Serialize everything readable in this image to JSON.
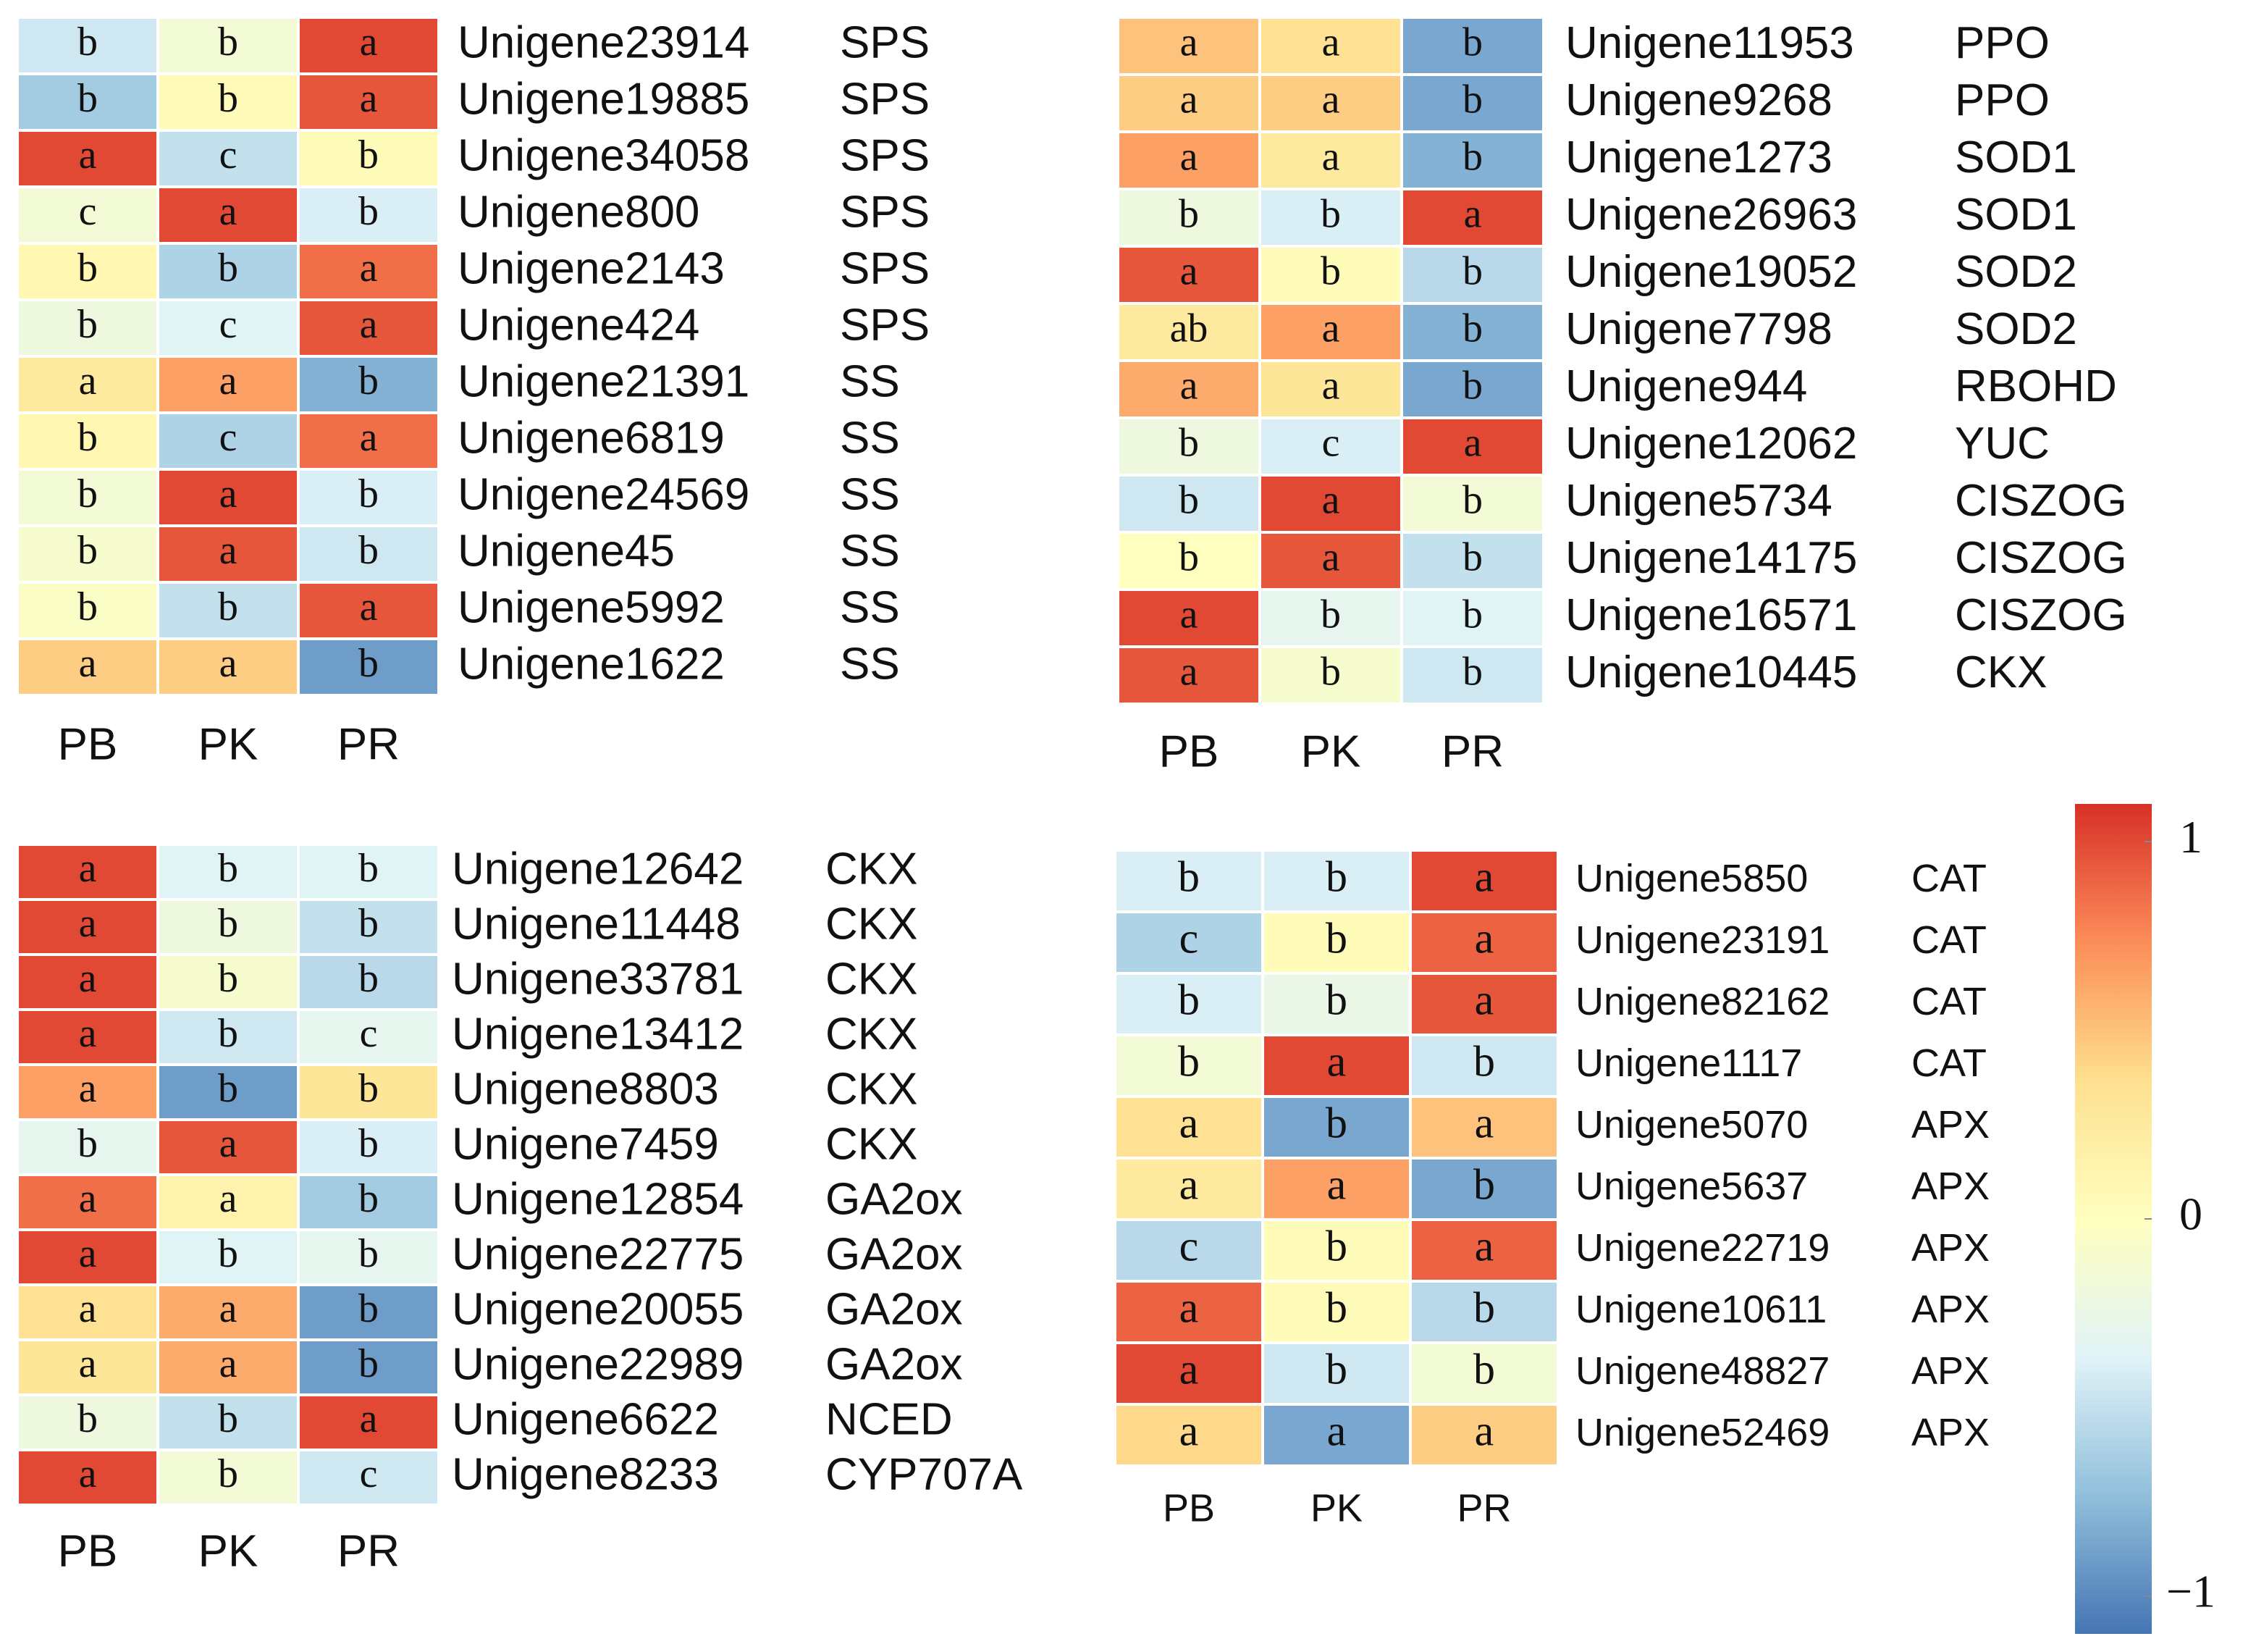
{
  "chart_data": [
    {
      "type": "heatmap",
      "columns": [
        "PB",
        "PK",
        "PR"
      ],
      "row_ids": [
        "Unigene23914",
        "Unigene19885",
        "Unigene34058",
        "Unigene800",
        "Unigene2143",
        "Unigene424",
        "Unigene21391",
        "Unigene6819",
        "Unigene24569",
        "Unigene45",
        "Unigene5992",
        "Unigene1622"
      ],
      "row_genes": [
        "SPS",
        "SPS",
        "SPS",
        "SPS",
        "SPS",
        "SPS",
        "SS",
        "SS",
        "SS",
        "SS",
        "SS",
        "SS"
      ],
      "values": [
        [
          -0.45,
          -0.15,
          1
        ],
        [
          -0.65,
          0.05,
          0.95
        ],
        [
          1,
          -0.5,
          0.05
        ],
        [
          -0.15,
          1,
          -0.4
        ],
        [
          0.1,
          -0.6,
          0.85
        ],
        [
          -0.2,
          -0.35,
          0.95
        ],
        [
          0.25,
          0.65,
          -0.8
        ],
        [
          0.1,
          -0.6,
          0.85
        ],
        [
          -0.15,
          1,
          -0.4
        ],
        [
          -0.1,
          0.95,
          -0.45
        ],
        [
          -0.05,
          -0.5,
          0.95
        ],
        [
          0.45,
          0.45,
          -0.9
        ]
      ],
      "letters": [
        [
          "b",
          "b",
          "a"
        ],
        [
          "b",
          "b",
          "a"
        ],
        [
          "a",
          "c",
          "b"
        ],
        [
          "c",
          "a",
          "b"
        ],
        [
          "b",
          "b",
          "a"
        ],
        [
          "b",
          "c",
          "a"
        ],
        [
          "a",
          "a",
          "b"
        ],
        [
          "b",
          "c",
          "a"
        ],
        [
          "b",
          "a",
          "b"
        ],
        [
          "b",
          "a",
          "b"
        ],
        [
          "b",
          "b",
          "a"
        ],
        [
          "a",
          "a",
          "b"
        ]
      ]
    },
    {
      "type": "heatmap",
      "columns": [
        "PB",
        "PK",
        "PR"
      ],
      "row_ids": [
        "Unigene11953",
        "Unigene9268",
        "Unigene1273",
        "Unigene26963",
        "Unigene19052",
        "Unigene7798",
        "Unigene944",
        "Unigene12062",
        "Unigene5734",
        "Unigene14175",
        "Unigene16571",
        "Unigene10445"
      ],
      "row_genes": [
        "PPO",
        "PPO",
        "SOD1",
        "SOD1",
        "SOD2",
        "SOD2",
        "RBOHD",
        "YUC",
        "CISZOG",
        "CISZOG",
        "CISZOG",
        "CKX"
      ],
      "values": [
        [
          0.5,
          0.35,
          -0.85
        ],
        [
          0.45,
          0.45,
          -0.85
        ],
        [
          0.65,
          0.25,
          -0.8
        ],
        [
          -0.2,
          -0.4,
          1
        ],
        [
          0.95,
          0.05,
          -0.55
        ],
        [
          0.25,
          0.65,
          -0.8
        ],
        [
          0.6,
          0.3,
          -0.85
        ],
        [
          -0.2,
          -0.4,
          1
        ],
        [
          -0.45,
          1,
          -0.15
        ],
        [
          0,
          0.95,
          -0.5
        ],
        [
          1,
          -0.3,
          -0.35
        ],
        [
          0.95,
          -0.1,
          -0.45
        ]
      ],
      "letters": [
        [
          "a",
          "a",
          "b"
        ],
        [
          "a",
          "a",
          "b"
        ],
        [
          "a",
          "a",
          "b"
        ],
        [
          "b",
          "b",
          "a"
        ],
        [
          "a",
          "b",
          "b"
        ],
        [
          "ab",
          "a",
          "b"
        ],
        [
          "a",
          "a",
          "b"
        ],
        [
          "b",
          "c",
          "a"
        ],
        [
          "b",
          "a",
          "b"
        ],
        [
          "b",
          "a",
          "b"
        ],
        [
          "a",
          "b",
          "b"
        ],
        [
          "a",
          "b",
          "b"
        ]
      ]
    },
    {
      "type": "heatmap",
      "columns": [
        "PB",
        "PK",
        "PR"
      ],
      "row_ids": [
        "Unigene12642",
        "Unigene11448",
        "Unigene33781",
        "Unigene13412",
        "Unigene8803",
        "Unigene7459",
        "Unigene12854",
        "Unigene22775",
        "Unigene20055",
        "Unigene22989",
        "Unigene6622",
        "Unigene8233"
      ],
      "row_genes": [
        "CKX",
        "CKX",
        "CKX",
        "CKX",
        "CKX",
        "CKX",
        "GA2ox",
        "GA2ox",
        "GA2ox",
        "GA2ox",
        "NCED",
        "CYP707A"
      ],
      "values": [
        [
          1,
          -0.35,
          -0.35
        ],
        [
          1,
          -0.2,
          -0.5
        ],
        [
          1,
          -0.1,
          -0.55
        ],
        [
          1,
          -0.45,
          -0.3
        ],
        [
          0.65,
          -0.9,
          0.3
        ],
        [
          -0.3,
          0.95,
          -0.4
        ],
        [
          0.85,
          0.15,
          -0.65
        ],
        [
          1,
          -0.35,
          -0.3
        ],
        [
          0.35,
          0.6,
          -0.9
        ],
        [
          0.3,
          0.6,
          -0.9
        ],
        [
          -0.2,
          -0.5,
          1
        ],
        [
          1,
          -0.15,
          -0.45
        ]
      ],
      "letters": [
        [
          "a",
          "b",
          "b"
        ],
        [
          "a",
          "b",
          "b"
        ],
        [
          "a",
          "b",
          "b"
        ],
        [
          "a",
          "b",
          "c"
        ],
        [
          "a",
          "b",
          "b"
        ],
        [
          "b",
          "a",
          "b"
        ],
        [
          "a",
          "a",
          "b"
        ],
        [
          "a",
          "b",
          "b"
        ],
        [
          "a",
          "a",
          "b"
        ],
        [
          "a",
          "a",
          "b"
        ],
        [
          "b",
          "b",
          "a"
        ],
        [
          "a",
          "b",
          "c"
        ]
      ]
    },
    {
      "type": "heatmap",
      "columns": [
        "PB",
        "PK",
        "PR"
      ],
      "row_ids": [
        "Unigene5850",
        "Unigene23191",
        "Unigene82162",
        "Unigene1117",
        "Unigene5070",
        "Unigene5637",
        "Unigene22719",
        "Unigene10611",
        "Unigene48827",
        "Unigene52469"
      ],
      "row_genes": [
        "CAT",
        "CAT",
        "CAT",
        "CAT",
        "APX",
        "APX",
        "APX",
        "APX",
        "APX",
        "APX"
      ],
      "values": [
        [
          -0.4,
          -0.4,
          1
        ],
        [
          -0.6,
          0.05,
          0.9
        ],
        [
          -0.4,
          -0.25,
          0.95
        ],
        [
          -0.15,
          1,
          -0.45
        ],
        [
          0.35,
          -0.85,
          0.5
        ],
        [
          0.25,
          0.65,
          -0.85
        ],
        [
          -0.55,
          0.05,
          0.9
        ],
        [
          0.9,
          0.05,
          -0.55
        ],
        [
          1,
          -0.45,
          -0.15
        ],
        [
          0.4,
          -0.85,
          0.45
        ]
      ],
      "letters": [
        [
          "b",
          "b",
          "a"
        ],
        [
          "c",
          "b",
          "a"
        ],
        [
          "b",
          "b",
          "a"
        ],
        [
          "b",
          "a",
          "b"
        ],
        [
          "a",
          "b",
          "a"
        ],
        [
          "a",
          "a",
          "b"
        ],
        [
          "c",
          "b",
          "a"
        ],
        [
          "a",
          "b",
          "b"
        ],
        [
          "a",
          "b",
          "b"
        ],
        [
          "a",
          "a",
          "a"
        ]
      ]
    },
    {
      "type": "colorbar",
      "zlim": [
        -1.1,
        1.1
      ],
      "zticks": [
        1,
        0,
        {
          "value": -1,
          "label": "−1"
        }
      ],
      "colors": [
        "#4575b4",
        "#91bfdb",
        "#e0f3f8",
        "#ffffbf",
        "#fee090",
        "#fc8d59",
        "#d73027"
      ]
    }
  ]
}
